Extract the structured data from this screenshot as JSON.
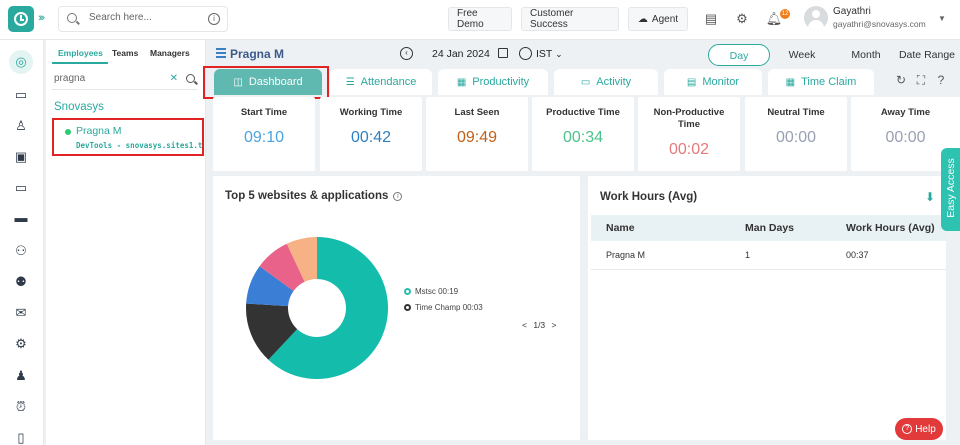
{
  "header": {
    "search_placeholder": "Search here...",
    "buttons": {
      "free_demo": "Free Demo",
      "customer_success": "Customer Success",
      "agent": "Agent"
    },
    "notification_count": "12",
    "user": {
      "name": "Gayathri",
      "email": "gayathri@snovasys.com"
    }
  },
  "employees_panel": {
    "tabs": [
      "Employees",
      "Teams",
      "Managers"
    ],
    "search_value": "pragna",
    "org_name": "Snovasys",
    "employee": {
      "name": "Pragna M",
      "status_color": "#2ecc71",
      "subtitle": "DevTools - snovasys.sites1.t..."
    }
  },
  "main": {
    "employee_title": "Pragna M",
    "date": "24 Jan 2024",
    "timezone": "IST",
    "ranges": [
      "Day",
      "Week",
      "Month",
      "Date Range"
    ],
    "active_range": "Day",
    "tabs": [
      {
        "label": "Dashboard",
        "icon": "dashboard-icon"
      },
      {
        "label": "Attendance",
        "icon": "checklist-icon"
      },
      {
        "label": "Productivity",
        "icon": "chart-icon"
      },
      {
        "label": "Activity",
        "icon": "monitor-icon"
      },
      {
        "label": "Monitor",
        "icon": "screen-icon"
      },
      {
        "label": "Time Claim",
        "icon": "calendar-icon"
      }
    ]
  },
  "stats": [
    {
      "label": "Start Time",
      "value": "09:10",
      "color": "#4aa3df"
    },
    {
      "label": "Working Time",
      "value": "00:42",
      "color": "#2e7fc1"
    },
    {
      "label": "Last Seen",
      "value": "09:49",
      "color": "#c0601a"
    },
    {
      "label": "Productive Time",
      "value": "00:34",
      "color": "#4cc38a"
    },
    {
      "label": "Non-Productive Time",
      "value": "00:02",
      "color": "#e57a7a"
    },
    {
      "label": "Neutral Time",
      "value": "00:00",
      "color": "#9aa0b4"
    },
    {
      "label": "Away Time",
      "value": "00:00",
      "color": "#9aa0b4"
    }
  ],
  "top_apps": {
    "title": "Top 5 websites & applications",
    "legend": [
      {
        "label": "Mstsc 00:19",
        "color": "#26bfae"
      },
      {
        "label": "Time Champ 00:03",
        "color": "#333333"
      }
    ],
    "pager": "1/3",
    "chart_data": {
      "type": "pie",
      "donut": true,
      "segments": [
        {
          "label": "Mstsc",
          "share": 0.62,
          "color": "#13bcab"
        },
        {
          "label": "Time Champ",
          "share": 0.14,
          "color": "#333333"
        },
        {
          "label": "",
          "share": 0.09,
          "color": "#3a7ed6"
        },
        {
          "label": "",
          "share": 0.08,
          "color": "#e8628a"
        },
        {
          "label": "",
          "share": 0.07,
          "color": "#f6b185"
        }
      ]
    }
  },
  "work_hours": {
    "title": "Work Hours (Avg)",
    "columns": [
      "Name",
      "Man Days",
      "Work Hours (Avg)"
    ],
    "rows": [
      [
        "Pragna M",
        "1",
        "00:37"
      ]
    ]
  },
  "easy_access": "Easy Access",
  "help": "Help"
}
